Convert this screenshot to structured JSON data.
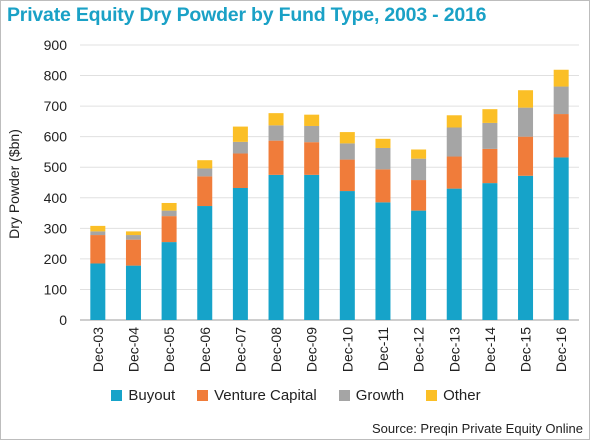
{
  "title": "Private Equity Dry Powder by Fund Type, 2003 - 2016",
  "source": "Source: Preqin Private Equity Online",
  "chart_data": {
    "type": "bar",
    "stacked": true,
    "title": "Private Equity Dry Powder by Fund Type, 2003 - 2016",
    "xlabel": "",
    "ylabel": "Dry Powder ($bn)",
    "ylim": [
      0,
      900
    ],
    "yticks": [
      0,
      100,
      200,
      300,
      400,
      500,
      600,
      700,
      800,
      900
    ],
    "grid": true,
    "legend_position": "bottom",
    "categories": [
      "Dec-03",
      "Dec-04",
      "Dec-05",
      "Dec-06",
      "Dec-07",
      "Dec-08",
      "Dec-09",
      "Dec-10",
      "Dec-11",
      "Dec-12",
      "Dec-13",
      "Dec-14",
      "Dec-15",
      "Dec-16"
    ],
    "series": [
      {
        "name": "Buyout",
        "color": "#16a3c9",
        "values": [
          185,
          178,
          255,
          373,
          432,
          475,
          475,
          422,
          385,
          358,
          430,
          448,
          472,
          532
        ]
      },
      {
        "name": "Venture Capital",
        "color": "#f07c3a",
        "values": [
          93,
          85,
          85,
          97,
          113,
          112,
          107,
          103,
          108,
          100,
          105,
          112,
          128,
          142
        ]
      },
      {
        "name": "Growth",
        "color": "#a5a5a5",
        "values": [
          12,
          15,
          18,
          26,
          38,
          50,
          53,
          53,
          70,
          70,
          95,
          85,
          95,
          90
        ]
      },
      {
        "name": "Other",
        "color": "#fbbf26",
        "values": [
          18,
          12,
          25,
          27,
          50,
          40,
          37,
          37,
          30,
          30,
          40,
          45,
          57,
          55
        ]
      }
    ]
  }
}
